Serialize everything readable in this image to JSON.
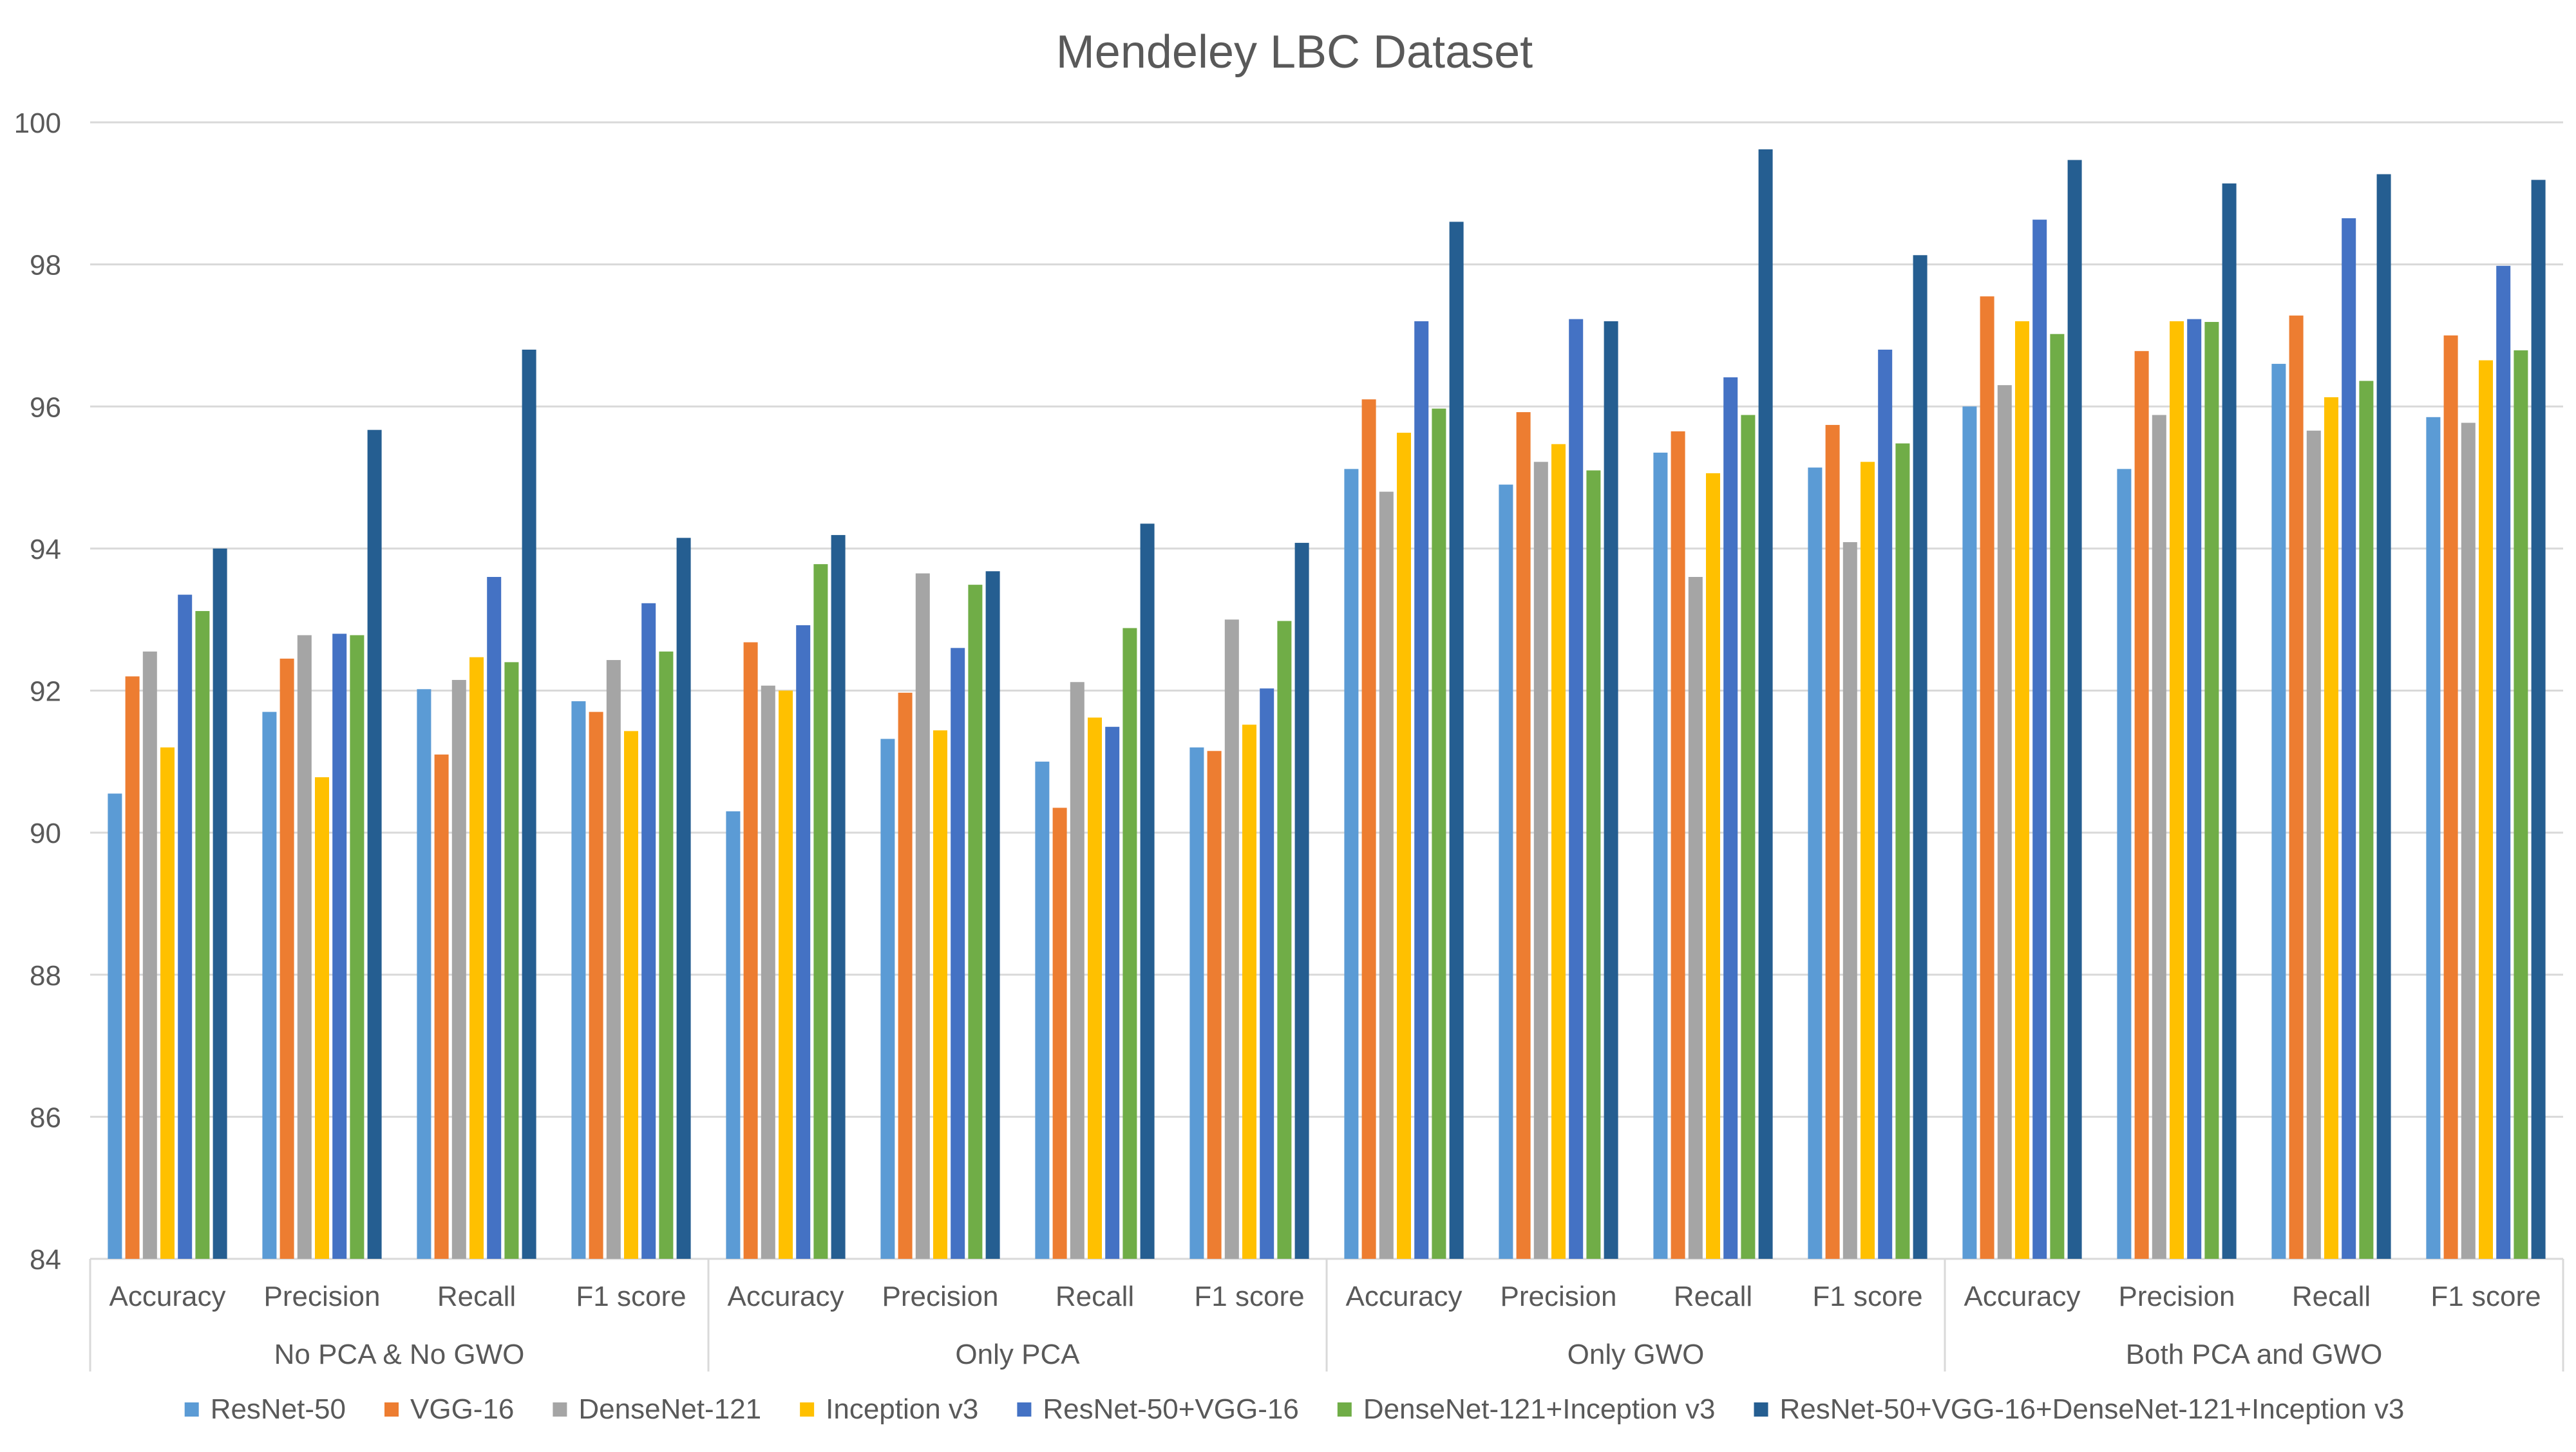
{
  "chart_data": {
    "type": "bar",
    "title": "Mendeley LBC Dataset",
    "xlabel": "",
    "ylabel": "",
    "ylim": [
      84,
      100
    ],
    "yticks": [
      84,
      86,
      88,
      90,
      92,
      94,
      96,
      98,
      100
    ],
    "grid": true,
    "legend_position": "bottom",
    "groups": [
      {
        "label": "No PCA & No GWO",
        "categories": [
          "Accuracy",
          "Precision",
          "Recall",
          "F1 score"
        ]
      },
      {
        "label": "Only PCA",
        "categories": [
          "Accuracy",
          "Precision",
          "Recall",
          "F1 score"
        ]
      },
      {
        "label": "Only GWO",
        "categories": [
          "Accuracy",
          "Precision",
          "Recall",
          "F1 score"
        ]
      },
      {
        "label": "Both PCA and GWO",
        "categories": [
          "Accuracy",
          "Precision",
          "Recall",
          "F1 score"
        ]
      }
    ],
    "series": [
      {
        "name": "ResNet-50",
        "color": "#5b9bd5",
        "values": [
          90.55,
          91.7,
          92.02,
          91.85,
          90.3,
          91.32,
          91.0,
          91.2,
          95.12,
          94.9,
          95.35,
          95.14,
          96.0,
          95.12,
          96.6,
          95.85
        ]
      },
      {
        "name": "VGG-16",
        "color": "#ed7d31",
        "values": [
          92.2,
          92.45,
          91.1,
          91.7,
          92.68,
          91.97,
          90.35,
          91.15,
          96.1,
          95.92,
          95.65,
          95.74,
          97.55,
          96.78,
          97.28,
          97.0
        ]
      },
      {
        "name": "DenseNet-121",
        "color": "#a5a5a5",
        "values": [
          92.55,
          92.78,
          92.15,
          92.43,
          92.07,
          93.65,
          92.12,
          93.0,
          94.8,
          95.22,
          93.6,
          94.09,
          96.3,
          95.88,
          95.66,
          95.77
        ]
      },
      {
        "name": "Inception v3",
        "color": "#ffc000",
        "values": [
          91.2,
          90.78,
          92.47,
          91.43,
          92.0,
          91.44,
          91.62,
          91.52,
          95.63,
          95.47,
          95.06,
          95.22,
          97.2,
          97.2,
          96.13,
          96.65
        ]
      },
      {
        "name": "ResNet-50+VGG-16",
        "color": "#4472c4",
        "values": [
          93.35,
          92.8,
          93.6,
          93.23,
          92.92,
          92.6,
          91.49,
          92.03,
          97.2,
          97.23,
          96.41,
          96.8,
          98.63,
          97.23,
          98.65,
          97.98
        ]
      },
      {
        "name": "DenseNet-121+Inception v3",
        "color": "#70ad47",
        "values": [
          93.12,
          92.78,
          92.4,
          92.55,
          93.78,
          93.49,
          92.88,
          92.98,
          95.97,
          95.1,
          95.88,
          95.48,
          97.02,
          97.19,
          96.36,
          96.79
        ]
      },
      {
        "name": "ResNet-50+VGG-16+DenseNet-121+Inception v3",
        "color": "#255e91",
        "values": [
          94.0,
          95.67,
          96.8,
          94.15,
          94.19,
          93.68,
          94.35,
          94.08,
          98.6,
          97.2,
          99.62,
          98.13,
          99.47,
          99.14,
          99.27,
          99.19
        ]
      }
    ]
  }
}
